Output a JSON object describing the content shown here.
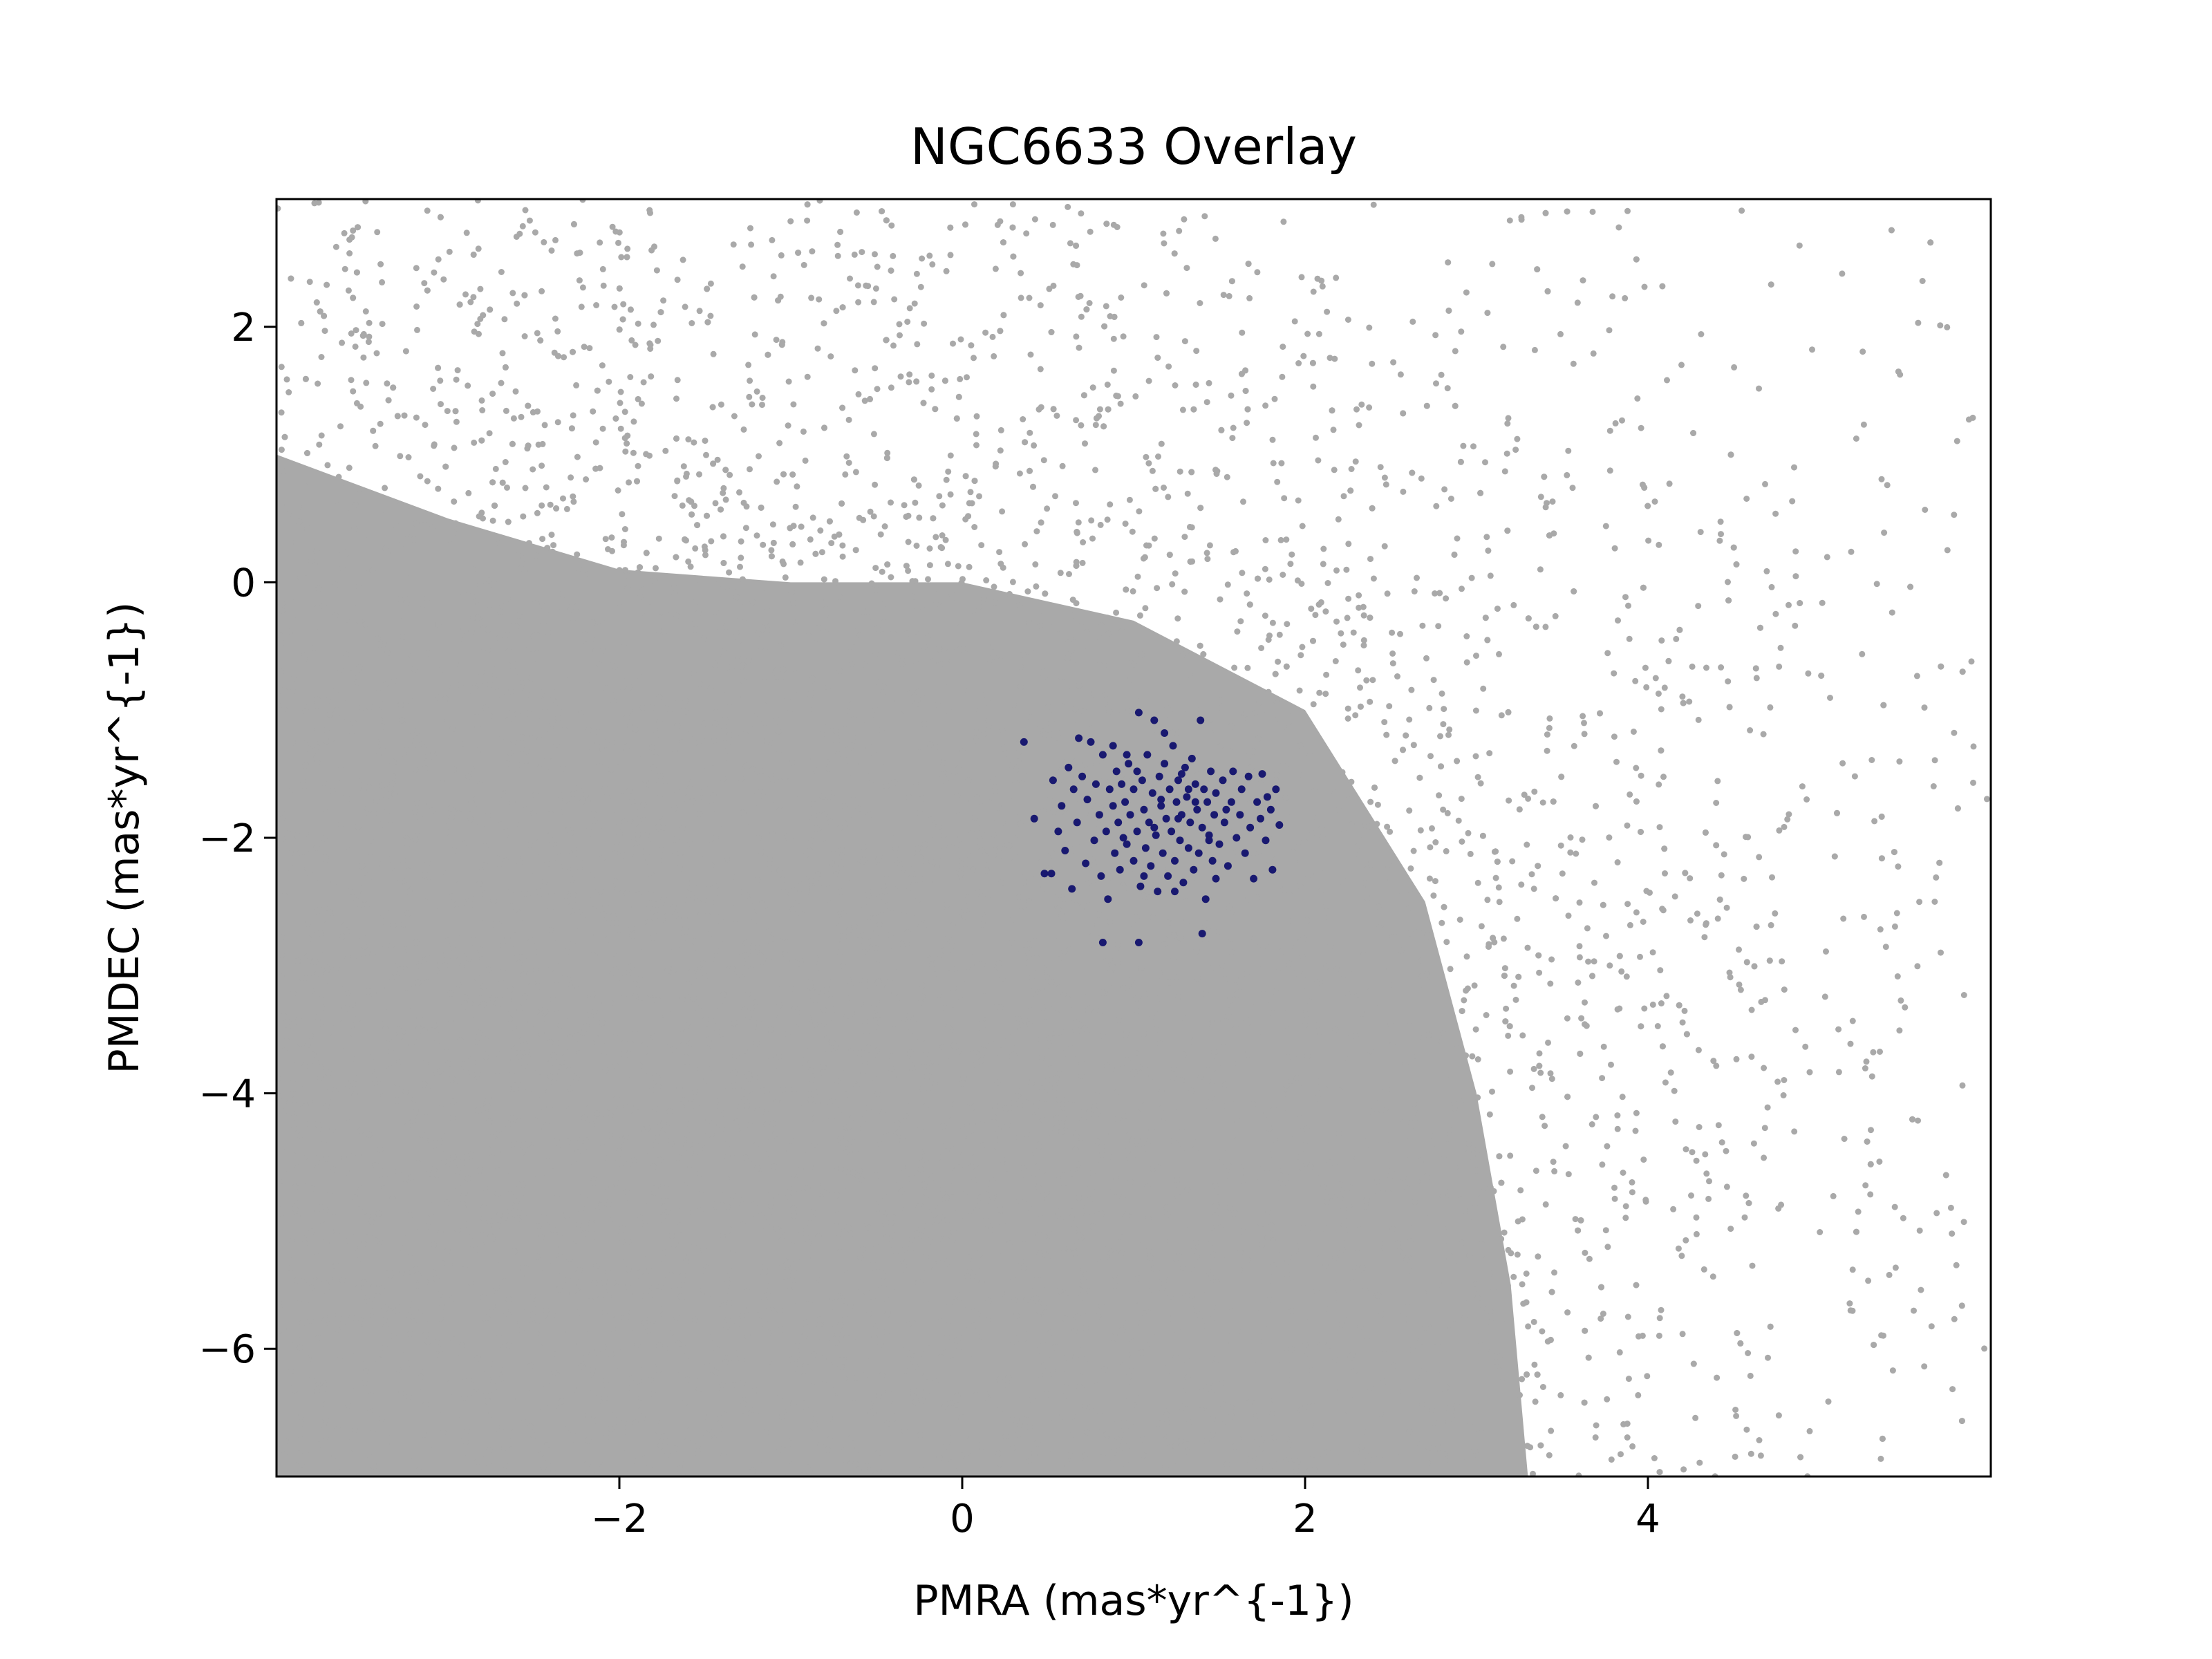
{
  "chart_data": {
    "type": "scatter",
    "title": "NGC6633 Overlay",
    "xlabel": "PMRA (mas*yr^{-1})",
    "ylabel": "PMDEC (mas*yr^{-1})",
    "xlim": [
      -4.0,
      6.0
    ],
    "ylim": [
      -7.0,
      3.0
    ],
    "x_ticks": [
      -2,
      0,
      2,
      4
    ],
    "x_tick_labels": [
      "−2",
      "0",
      "2",
      "4"
    ],
    "y_ticks": [
      -6,
      -4,
      -2,
      0,
      2
    ],
    "y_tick_labels": [
      "−6",
      "−4",
      "−2",
      "0",
      "2"
    ],
    "grid": false,
    "legend": "none",
    "series": [
      {
        "role": "background field stars",
        "color": "#a9a9a9",
        "distribution": "dense field; saturated over the left and lower-left region, thinning toward the right (x > 3) and sparse near x = 5 to 6",
        "approx_density_center": [
          -1.5,
          -4.0
        ]
      },
      {
        "role": "cluster members",
        "color": "#191970",
        "points": [
          [
            0.36,
            -1.25
          ],
          [
            0.42,
            -1.85
          ],
          [
            0.48,
            -2.28
          ],
          [
            0.52,
            -2.28
          ],
          [
            0.53,
            -1.55
          ],
          [
            0.56,
            -1.95
          ],
          [
            0.58,
            -1.75
          ],
          [
            0.6,
            -2.1
          ],
          [
            0.62,
            -1.45
          ],
          [
            0.64,
            -2.4
          ],
          [
            0.65,
            -1.62
          ],
          [
            0.67,
            -1.88
          ],
          [
            0.7,
            -1.52
          ],
          [
            0.72,
            -2.2
          ],
          [
            0.73,
            -1.7
          ],
          [
            0.75,
            -1.25
          ],
          [
            0.77,
            -2.02
          ],
          [
            0.78,
            -1.58
          ],
          [
            0.8,
            -1.82
          ],
          [
            0.81,
            -2.3
          ],
          [
            0.82,
            -1.35
          ],
          [
            0.84,
            -1.95
          ],
          [
            0.85,
            -2.48
          ],
          [
            0.86,
            -1.62
          ],
          [
            0.88,
            -1.75
          ],
          [
            0.89,
            -2.12
          ],
          [
            0.9,
            -1.48
          ],
          [
            0.91,
            -1.88
          ],
          [
            0.92,
            -2.25
          ],
          [
            0.93,
            -1.58
          ],
          [
            0.95,
            -1.72
          ],
          [
            0.96,
            -2.05
          ],
          [
            0.97,
            -1.42
          ],
          [
            0.98,
            -1.82
          ],
          [
            1.0,
            -2.18
          ],
          [
            1.0,
            -1.62
          ],
          [
            1.02,
            -1.95
          ],
          [
            1.03,
            -1.02
          ],
          [
            1.04,
            -2.38
          ],
          [
            1.05,
            -1.55
          ],
          [
            1.06,
            -1.78
          ],
          [
            1.07,
            -2.08
          ],
          [
            1.08,
            -1.35
          ],
          [
            1.09,
            -1.88
          ],
          [
            1.1,
            -2.22
          ],
          [
            1.11,
            -1.65
          ],
          [
            1.12,
            -1.08
          ],
          [
            1.13,
            -1.98
          ],
          [
            1.14,
            -2.42
          ],
          [
            1.15,
            -1.52
          ],
          [
            1.16,
            -1.75
          ],
          [
            1.17,
            -2.12
          ],
          [
            1.18,
            -1.42
          ],
          [
            1.19,
            -1.85
          ],
          [
            1.2,
            -2.3
          ],
          [
            1.21,
            -1.62
          ],
          [
            1.22,
            -1.95
          ],
          [
            1.23,
            -1.28
          ],
          [
            1.24,
            -2.18
          ],
          [
            1.25,
            -1.72
          ],
          [
            1.26,
            -1.55
          ],
          [
            1.27,
            -2.02
          ],
          [
            1.28,
            -1.82
          ],
          [
            1.29,
            -2.35
          ],
          [
            1.3,
            -1.45
          ],
          [
            1.31,
            -1.68
          ],
          [
            1.32,
            -2.08
          ],
          [
            1.33,
            -1.88
          ],
          [
            1.34,
            -1.38
          ],
          [
            1.35,
            -2.25
          ],
          [
            1.36,
            -1.58
          ],
          [
            1.37,
            -1.78
          ],
          [
            1.38,
            -2.12
          ],
          [
            1.39,
            -1.08
          ],
          [
            1.4,
            -1.92
          ],
          [
            1.41,
            -1.62
          ],
          [
            1.42,
            -2.48
          ],
          [
            1.43,
            -1.72
          ],
          [
            1.44,
            -1.98
          ],
          [
            1.45,
            -1.48
          ],
          [
            1.46,
            -2.18
          ],
          [
            1.47,
            -1.82
          ],
          [
            1.48,
            -1.65
          ],
          [
            1.5,
            -2.05
          ],
          [
            1.52,
            -1.55
          ],
          [
            1.53,
            -1.88
          ],
          [
            1.55,
            -2.22
          ],
          [
            1.57,
            -1.72
          ],
          [
            1.58,
            -1.48
          ],
          [
            1.6,
            -2.0
          ],
          [
            1.62,
            -1.82
          ],
          [
            1.63,
            -1.62
          ],
          [
            1.65,
            -2.12
          ],
          [
            1.67,
            -1.52
          ],
          [
            1.68,
            -1.92
          ],
          [
            1.7,
            -2.32
          ],
          [
            1.72,
            -1.72
          ],
          [
            1.74,
            -1.85
          ],
          [
            1.75,
            -1.5
          ],
          [
            1.77,
            -2.02
          ],
          [
            1.78,
            -1.68
          ],
          [
            1.8,
            -1.78
          ],
          [
            1.81,
            -2.25
          ],
          [
            1.83,
            -1.62
          ],
          [
            1.85,
            -1.9
          ],
          [
            0.68,
            -1.22
          ],
          [
            0.96,
            -1.35
          ],
          [
            1.18,
            -1.18
          ],
          [
            1.28,
            -1.5
          ],
          [
            1.02,
            -1.48
          ],
          [
            0.88,
            -1.28
          ],
          [
            1.36,
            -1.72
          ],
          [
            1.06,
            -2.3
          ],
          [
            1.24,
            -2.42
          ],
          [
            1.48,
            -2.32
          ],
          [
            0.82,
            -2.82
          ],
          [
            1.03,
            -2.82
          ],
          [
            1.4,
            -2.75
          ],
          [
            1.16,
            -1.7
          ],
          [
            1.32,
            -1.62
          ],
          [
            1.12,
            -1.92
          ],
          [
            0.94,
            -2.0
          ],
          [
            1.54,
            -1.78
          ],
          [
            1.44,
            -2.02
          ],
          [
            1.26,
            -1.85
          ]
        ]
      }
    ]
  }
}
